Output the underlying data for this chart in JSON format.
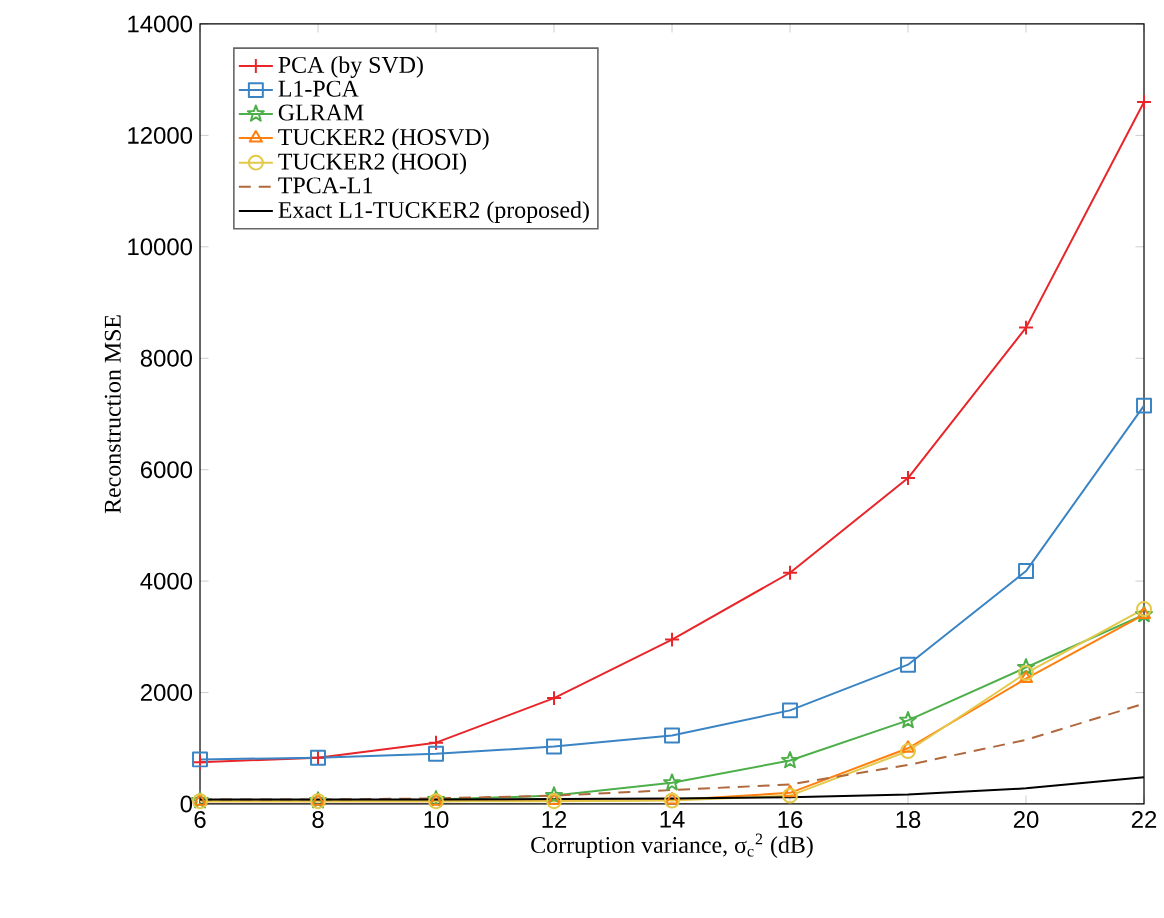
{
  "chart_data": {
    "type": "line",
    "xlabel": "Corruption variance, σ$_{c}$$^{2}$ (dB)",
    "ylabel": "Reconstruction MSE",
    "x": [
      6,
      8,
      10,
      12,
      14,
      16,
      18,
      20,
      22
    ],
    "xlim": [
      6,
      22
    ],
    "xticks": [
      6,
      8,
      10,
      12,
      14,
      16,
      18,
      20,
      22
    ],
    "ylim": [
      0,
      14000
    ],
    "yticks": [
      0,
      2000,
      4000,
      6000,
      8000,
      10000,
      12000,
      14000
    ],
    "grid": false,
    "legend": "top left",
    "series": [
      {
        "name": "PCA (by SVD)",
        "color": "#e8262a",
        "marker": "cross",
        "line_style": "solid",
        "values": [
          750,
          830,
          1100,
          1900,
          2950,
          4150,
          5850,
          8550,
          12600
        ]
      },
      {
        "name": "L1-PCA",
        "color": "#3a84c4",
        "marker": "square",
        "line_style": "solid",
        "values": [
          800,
          830,
          900,
          1030,
          1230,
          1680,
          2500,
          4180,
          7150
        ]
      },
      {
        "name": "GLRAM",
        "color": "#4daf4a",
        "marker": "star",
        "line_style": "solid",
        "values": [
          60,
          60,
          80,
          150,
          380,
          780,
          1500,
          2450,
          3400
        ]
      },
      {
        "name": "TUCKER2 (HOSVD)",
        "color": "#ff7f0e",
        "marker": "triangle",
        "line_style": "solid",
        "values": [
          50,
          50,
          50,
          60,
          70,
          200,
          1000,
          2250,
          3400
        ]
      },
      {
        "name": "TUCKER2 (HOOI)",
        "color": "#e3c84a",
        "marker": "circle",
        "line_style": "solid",
        "values": [
          50,
          50,
          50,
          50,
          60,
          150,
          950,
          2350,
          3500
        ]
      },
      {
        "name": "TPCA-L1",
        "color": "#b0683c",
        "marker": "none",
        "line_style": "dashed",
        "values": [
          80,
          80,
          100,
          150,
          250,
          350,
          700,
          1150,
          1800
        ]
      },
      {
        "name": "Exact L1-TUCKER2 (proposed)",
        "color": "#000000",
        "marker": "none",
        "line_style": "solid",
        "values": [
          80,
          80,
          80,
          90,
          100,
          120,
          170,
          280,
          480
        ]
      }
    ]
  }
}
